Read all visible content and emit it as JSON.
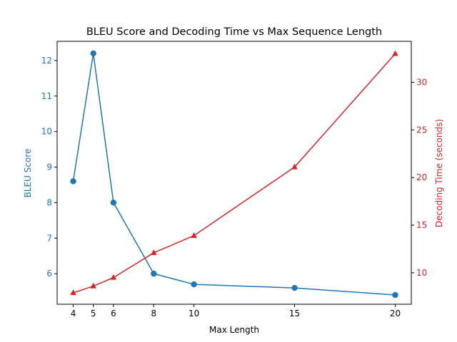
{
  "colors": {
    "left_series": "#1f77b4",
    "right_series": "#d62728",
    "axis": "#000000",
    "background": "#ffffff"
  },
  "chart_data": {
    "type": "line",
    "title": "BLEU Score and Decoding Time vs Max Sequence Length",
    "xlabel": "Max Length",
    "x": [
      4,
      5,
      6,
      8,
      10,
      15,
      20
    ],
    "xticks": [
      "4",
      "5",
      "6",
      "8",
      "10",
      "15",
      "20"
    ],
    "xlim": [
      3.2,
      20.8
    ],
    "left_axis": {
      "label": "BLEU Score",
      "ylim": [
        5.14,
        12.54
      ],
      "ticks": [
        "6",
        "7",
        "8",
        "9",
        "10",
        "11",
        "12"
      ]
    },
    "right_axis": {
      "label": "Decoding Time (seconds)",
      "ylim": [
        6.7,
        34.3
      ],
      "ticks": [
        "10",
        "15",
        "20",
        "25",
        "30"
      ]
    },
    "series": [
      {
        "axis": "left",
        "marker": "circle",
        "values": [
          8.6,
          12.2,
          8.0,
          6.0,
          5.7,
          5.6,
          5.4
        ]
      },
      {
        "axis": "right",
        "marker": "triangle",
        "values": [
          7.9,
          8.6,
          9.5,
          12.1,
          13.9,
          21.1,
          33.0
        ]
      }
    ]
  }
}
